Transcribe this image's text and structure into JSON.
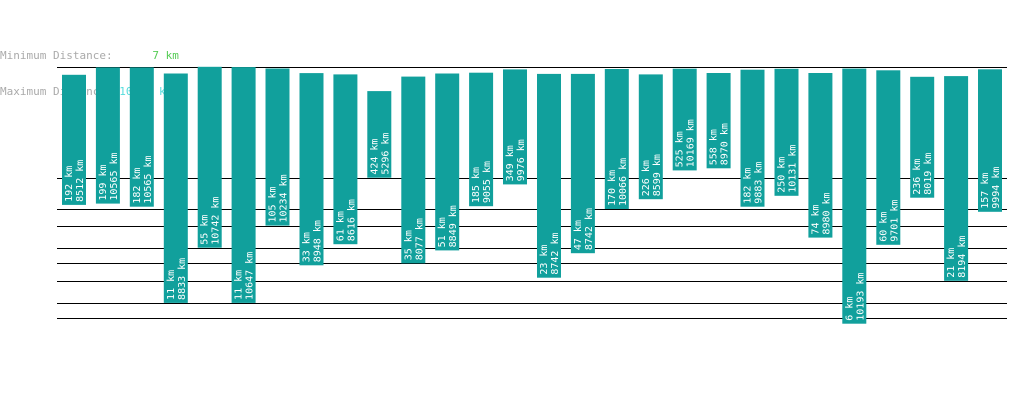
{
  "legend": {
    "min_label": "Minimum Distance:",
    "min_value": "7 km",
    "max_label": "Maximum Distance:",
    "max_value": "10743 km"
  },
  "colors": {
    "bar": "#11a09c",
    "bar_text": "#ffffff",
    "grid": "#000000",
    "min_value": "#55cc55",
    "max_value": "#55dddd",
    "label": "#aaaaaa"
  },
  "chart_data": {
    "type": "bar",
    "description_units": "km",
    "bars": [
      {
        "top": 8512,
        "bottom": 192
      },
      {
        "top": 10565,
        "bottom": 199
      },
      {
        "top": 10565,
        "bottom": 182
      },
      {
        "top": 8833,
        "bottom": 11
      },
      {
        "top": 10742,
        "bottom": 55
      },
      {
        "top": 10647,
        "bottom": 11
      },
      {
        "top": 10234,
        "bottom": 105
      },
      {
        "top": 8948,
        "bottom": 33
      },
      {
        "top": 8616,
        "bottom": 61
      },
      {
        "top": 5296,
        "bottom": 424
      },
      {
        "top": 8077,
        "bottom": 35
      },
      {
        "top": 8849,
        "bottom": 51
      },
      {
        "top": 9055,
        "bottom": 185
      },
      {
        "top": 9976,
        "bottom": 349
      },
      {
        "top": 8742,
        "bottom": 23
      },
      {
        "top": 8742,
        "bottom": 47
      },
      {
        "top": 10066,
        "bottom": 170
      },
      {
        "top": 8599,
        "bottom": 226
      },
      {
        "top": 10169,
        "bottom": 525
      },
      {
        "top": 8970,
        "bottom": 558
      },
      {
        "top": 9883,
        "bottom": 182
      },
      {
        "top": 10131,
        "bottom": 250
      },
      {
        "top": 8980,
        "bottom": 74
      },
      {
        "top": 10193,
        "bottom": 6
      },
      {
        "top": 9701,
        "bottom": 60
      },
      {
        "top": 8019,
        "bottom": 236
      },
      {
        "top": 8194,
        "bottom": 21
      },
      {
        "top": 9994,
        "bottom": 157
      }
    ],
    "unit": "km",
    "y_scale": "log",
    "ylim": [
      5,
      11000
    ],
    "grid_lines_at": [
      10743,
      424,
      170,
      105,
      55,
      35,
      21,
      11,
      7
    ]
  }
}
